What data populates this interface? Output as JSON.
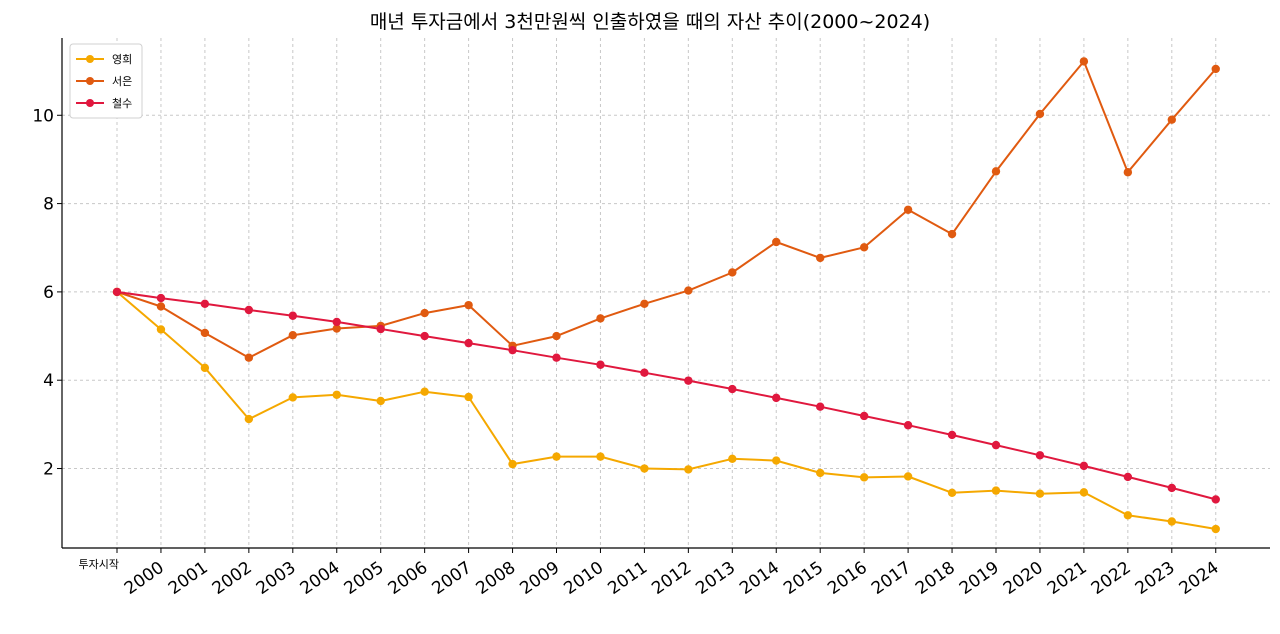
{
  "chart_data": {
    "type": "line",
    "title": "매년 투자금에서 3천만원씩 인출하였을 때의 자산 추이(2000~2024)",
    "xlabel": "",
    "ylabel": "",
    "ylim": [
      0.2,
      11.75
    ],
    "yticks": [
      2,
      4,
      6,
      8,
      10
    ],
    "grid": true,
    "legend_position": "top-left",
    "categories": [
      "투자시작",
      "2000",
      "2001",
      "2002",
      "2003",
      "2004",
      "2005",
      "2006",
      "2007",
      "2008",
      "2009",
      "2010",
      "2011",
      "2012",
      "2013",
      "2014",
      "2015",
      "2016",
      "2017",
      "2018",
      "2019",
      "2020",
      "2021",
      "2022",
      "2023",
      "2024"
    ],
    "series": [
      {
        "name": "영희",
        "color": "#f5a800",
        "values": [
          6.0,
          5.15,
          4.28,
          3.12,
          3.61,
          3.67,
          3.53,
          3.74,
          3.62,
          2.1,
          2.27,
          2.27,
          2.0,
          1.98,
          2.22,
          2.18,
          1.9,
          1.8,
          1.82,
          1.45,
          1.5,
          1.43,
          1.46,
          0.94,
          0.8,
          0.63
        ]
      },
      {
        "name": "서은",
        "color": "#e05a10",
        "values": [
          6.0,
          5.67,
          5.07,
          4.51,
          5.02,
          5.17,
          5.23,
          5.52,
          5.7,
          4.78,
          5.0,
          5.4,
          5.73,
          6.03,
          6.44,
          7.13,
          6.77,
          7.01,
          7.86,
          7.31,
          8.73,
          10.03,
          11.22,
          8.71,
          9.9,
          11.05
        ]
      },
      {
        "name": "철수",
        "color": "#e0183e",
        "values": [
          6.0,
          5.86,
          5.73,
          5.59,
          5.46,
          5.32,
          5.16,
          5.0,
          4.84,
          4.68,
          4.51,
          4.35,
          4.17,
          3.99,
          3.8,
          3.6,
          3.4,
          3.19,
          2.98,
          2.76,
          2.53,
          2.3,
          2.06,
          1.81,
          1.56,
          1.3
        ]
      }
    ]
  }
}
